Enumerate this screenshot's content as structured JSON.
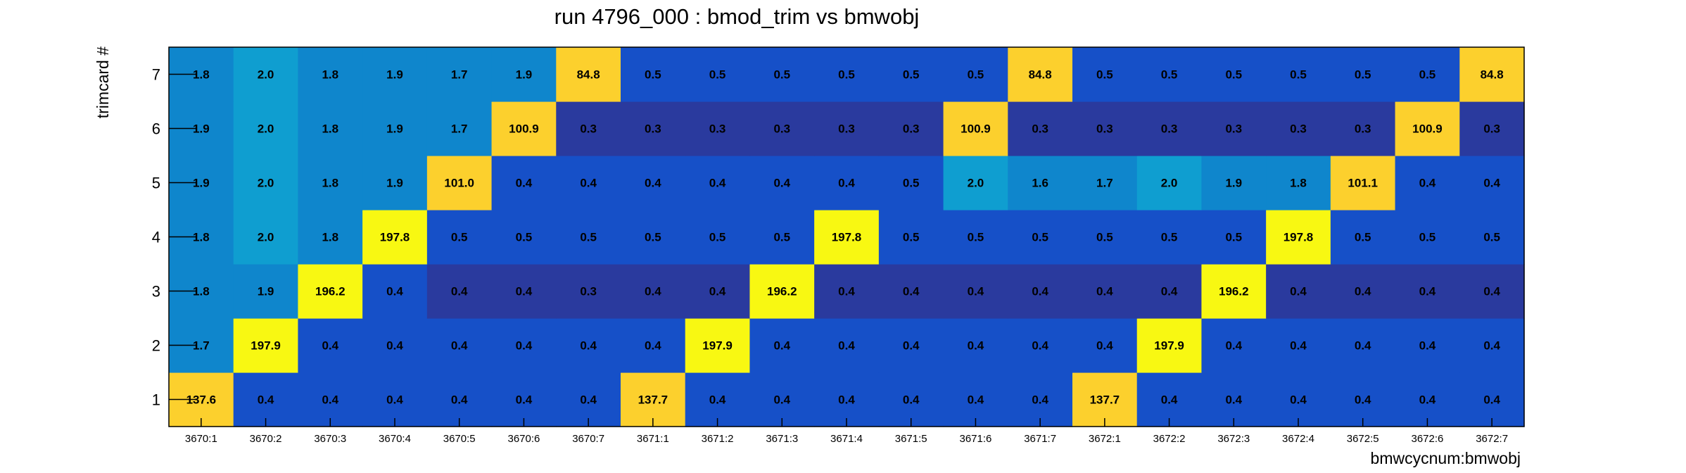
{
  "chart_data": {
    "type": "heatmap",
    "title": "run 4796_000 : bmod_trim vs bmwobj",
    "xlabel": "bmwcycnum:bmwobj",
    "ylabel": "trimcard #",
    "x_categories": [
      "3670:1",
      "3670:2",
      "3670:3",
      "3670:4",
      "3670:5",
      "3670:6",
      "3670:7",
      "3671:1",
      "3671:2",
      "3671:3",
      "3671:4",
      "3671:5",
      "3671:6",
      "3671:7",
      "3672:1",
      "3672:2",
      "3672:3",
      "3672:4",
      "3672:5",
      "3672:6",
      "3672:7"
    ],
    "y_categories": [
      "1",
      "2",
      "3",
      "4",
      "5",
      "6",
      "7"
    ],
    "values": [
      [
        "137.6",
        "0.4",
        "0.4",
        "0.4",
        "0.4",
        "0.4",
        "0.4",
        "137.7",
        "0.4",
        "0.4",
        "0.4",
        "0.4",
        "0.4",
        "0.4",
        "137.7",
        "0.4",
        "0.4",
        "0.4",
        "0.4",
        "0.4",
        "0.4"
      ],
      [
        "1.7",
        "197.9",
        "0.4",
        "0.4",
        "0.4",
        "0.4",
        "0.4",
        "0.4",
        "197.9",
        "0.4",
        "0.4",
        "0.4",
        "0.4",
        "0.4",
        "0.4",
        "197.9",
        "0.4",
        "0.4",
        "0.4",
        "0.4",
        "0.4"
      ],
      [
        "1.8",
        "1.9",
        "196.2",
        "0.4",
        "0.4",
        "0.4",
        "0.3",
        "0.4",
        "0.4",
        "196.2",
        "0.4",
        "0.4",
        "0.4",
        "0.4",
        "0.4",
        "0.4",
        "196.2",
        "0.4",
        "0.4",
        "0.4",
        "0.4"
      ],
      [
        "1.8",
        "2.0",
        "1.8",
        "197.8",
        "0.5",
        "0.5",
        "0.5",
        "0.5",
        "0.5",
        "0.5",
        "197.8",
        "0.5",
        "0.5",
        "0.5",
        "0.5",
        "0.5",
        "0.5",
        "197.8",
        "0.5",
        "0.5",
        "0.5"
      ],
      [
        "1.9",
        "2.0",
        "1.8",
        "1.9",
        "101.0",
        "0.4",
        "0.4",
        "0.4",
        "0.4",
        "0.4",
        "0.4",
        "0.5",
        "2.0",
        "1.6",
        "1.7",
        "2.0",
        "1.9",
        "1.8",
        "101.1",
        "0.4",
        "0.4"
      ],
      [
        "1.9",
        "2.0",
        "1.8",
        "1.9",
        "1.7",
        "100.9",
        "0.3",
        "0.3",
        "0.3",
        "0.3",
        "0.3",
        "0.3",
        "100.9",
        "0.3",
        "0.3",
        "0.3",
        "0.3",
        "0.3",
        "0.3",
        "100.9",
        "0.3"
      ],
      [
        "1.8",
        "2.0",
        "1.8",
        "1.9",
        "1.7",
        "1.9",
        "84.8",
        "0.5",
        "0.5",
        "0.5",
        "0.5",
        "0.5",
        "0.5",
        "84.8",
        "0.5",
        "0.5",
        "0.5",
        "0.5",
        "0.5",
        "0.5",
        "84.8"
      ]
    ],
    "colors": {
      "dark_navy": "#2a3a9e",
      "blue": "#1650c8",
      "mid_blue": "#0f86cc",
      "light_blue": "#0f9ed0",
      "orange_yellow": "#fcd02d",
      "yellow": "#f8f812"
    },
    "grid": false,
    "legend": "none"
  }
}
